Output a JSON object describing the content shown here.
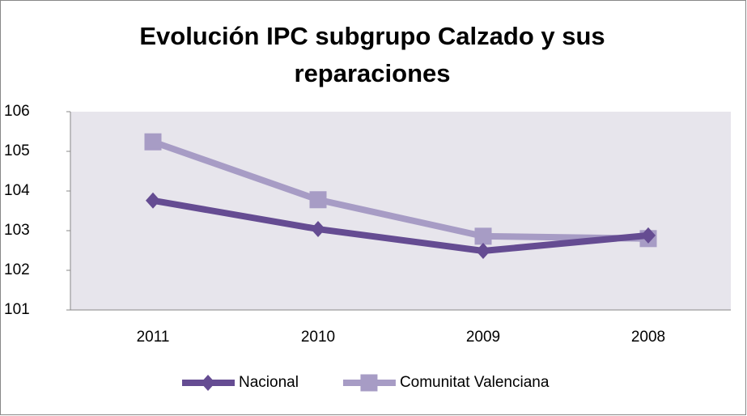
{
  "chart_data": {
    "type": "line",
    "title": "Evolución IPC subgrupo Calzado y sus reparaciones",
    "categories": [
      "2011",
      "2010",
      "2009",
      "2008"
    ],
    "series": [
      {
        "name": "Nacional",
        "color": "#654c92",
        "marker": "diamond",
        "values": [
          103.76,
          103.04,
          102.49,
          102.88
        ]
      },
      {
        "name": "Comunitat Valenciana",
        "color": "#a79cc5",
        "marker": "square",
        "values": [
          105.24,
          103.78,
          102.86,
          102.8
        ]
      }
    ],
    "ylim": [
      101,
      106
    ],
    "yticks": [
      101,
      102,
      103,
      104,
      105,
      106
    ],
    "legend": "bottom"
  }
}
